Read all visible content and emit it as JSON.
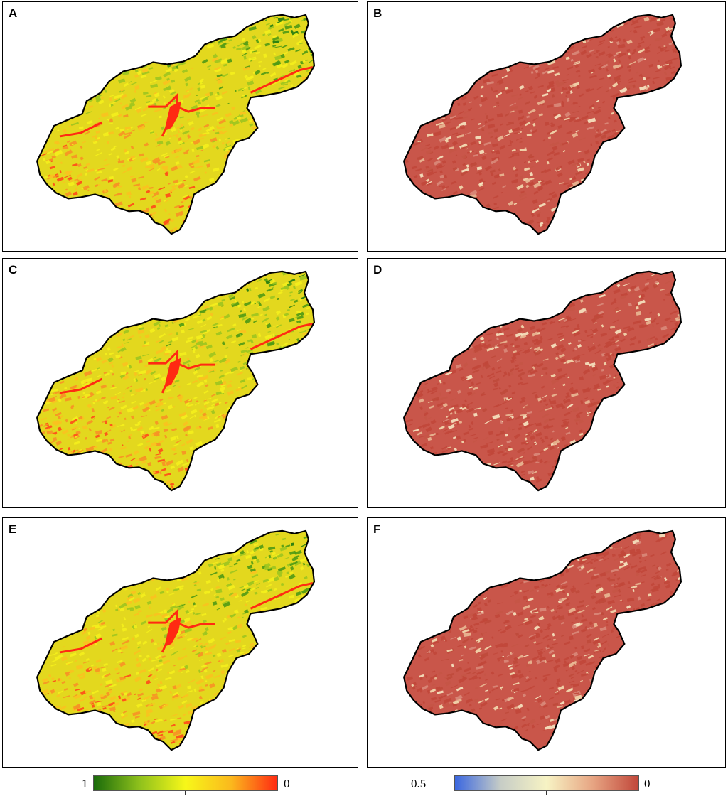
{
  "panels": [
    {
      "label": "A",
      "type": "index-a"
    },
    {
      "label": "B",
      "type": "index-b"
    },
    {
      "label": "C",
      "type": "index-a"
    },
    {
      "label": "D",
      "type": "index-b"
    },
    {
      "label": "E",
      "type": "index-a"
    },
    {
      "label": "F",
      "type": "index-b"
    }
  ],
  "legend_left": {
    "max_label": "1",
    "min_label": "0",
    "colors": [
      "#1a6b0a",
      "#8fc11c",
      "#f7f719",
      "#fbb81d",
      "#ff2a12"
    ]
  },
  "legend_right": {
    "max_label": "0.5",
    "min_label": "0",
    "colors": [
      "#3b67e0",
      "#c7cdc6",
      "#f7f3c4",
      "#e7a583",
      "#c1473a"
    ]
  },
  "palette": {
    "green_yellow_base": "#e3d81e",
    "red_base": "#c9564a",
    "border": "#000000"
  }
}
